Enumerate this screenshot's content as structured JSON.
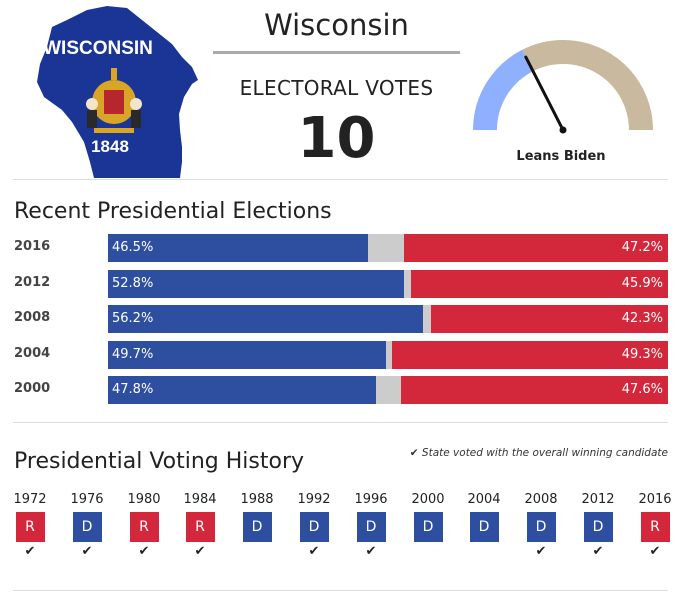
{
  "state": {
    "name": "Wisconsin",
    "flag_text": "WISCONSIN",
    "flag_year": "1848"
  },
  "electoral": {
    "label": "ELECTORAL VOTES",
    "value": "10"
  },
  "rating": {
    "label": "Leans Biden",
    "gauge_level": 0.35,
    "colors": {
      "dem": "#8fb0ff",
      "rep": "#c9b99f"
    }
  },
  "recent": {
    "title": "Recent Presidential Elections",
    "colors": {
      "dem": "#2E4E9F",
      "rep": "#D3283B",
      "other": "#cccccc"
    },
    "rows": [
      {
        "year": "2016",
        "dem_label": "46.5%",
        "rep_label": "47.2%",
        "dem": 46.5,
        "rep": 47.2
      },
      {
        "year": "2012",
        "dem_label": "52.8%",
        "rep_label": "45.9%",
        "dem": 52.8,
        "rep": 45.9
      },
      {
        "year": "2008",
        "dem_label": "56.2%",
        "rep_label": "42.3%",
        "dem": 56.2,
        "rep": 42.3
      },
      {
        "year": "2004",
        "dem_label": "49.7%",
        "rep_label": "49.3%",
        "dem": 49.7,
        "rep": 49.3
      },
      {
        "year": "2000",
        "dem_label": "47.8%",
        "rep_label": "47.6%",
        "dem": 47.8,
        "rep": 47.6
      }
    ]
  },
  "history": {
    "title": "Presidential Voting History",
    "note": "State voted with the overall winning candidate",
    "check_glyph": "✔",
    "items": [
      {
        "year": "1972",
        "party": "R",
        "winner_match": true
      },
      {
        "year": "1976",
        "party": "D",
        "winner_match": true
      },
      {
        "year": "1980",
        "party": "R",
        "winner_match": true
      },
      {
        "year": "1984",
        "party": "R",
        "winner_match": true
      },
      {
        "year": "1988",
        "party": "D",
        "winner_match": false
      },
      {
        "year": "1992",
        "party": "D",
        "winner_match": true
      },
      {
        "year": "1996",
        "party": "D",
        "winner_match": true
      },
      {
        "year": "2000",
        "party": "D",
        "winner_match": false
      },
      {
        "year": "2004",
        "party": "D",
        "winner_match": false
      },
      {
        "year": "2008",
        "party": "D",
        "winner_match": true
      },
      {
        "year": "2012",
        "party": "D",
        "winner_match": true
      },
      {
        "year": "2016",
        "party": "R",
        "winner_match": true
      }
    ]
  }
}
